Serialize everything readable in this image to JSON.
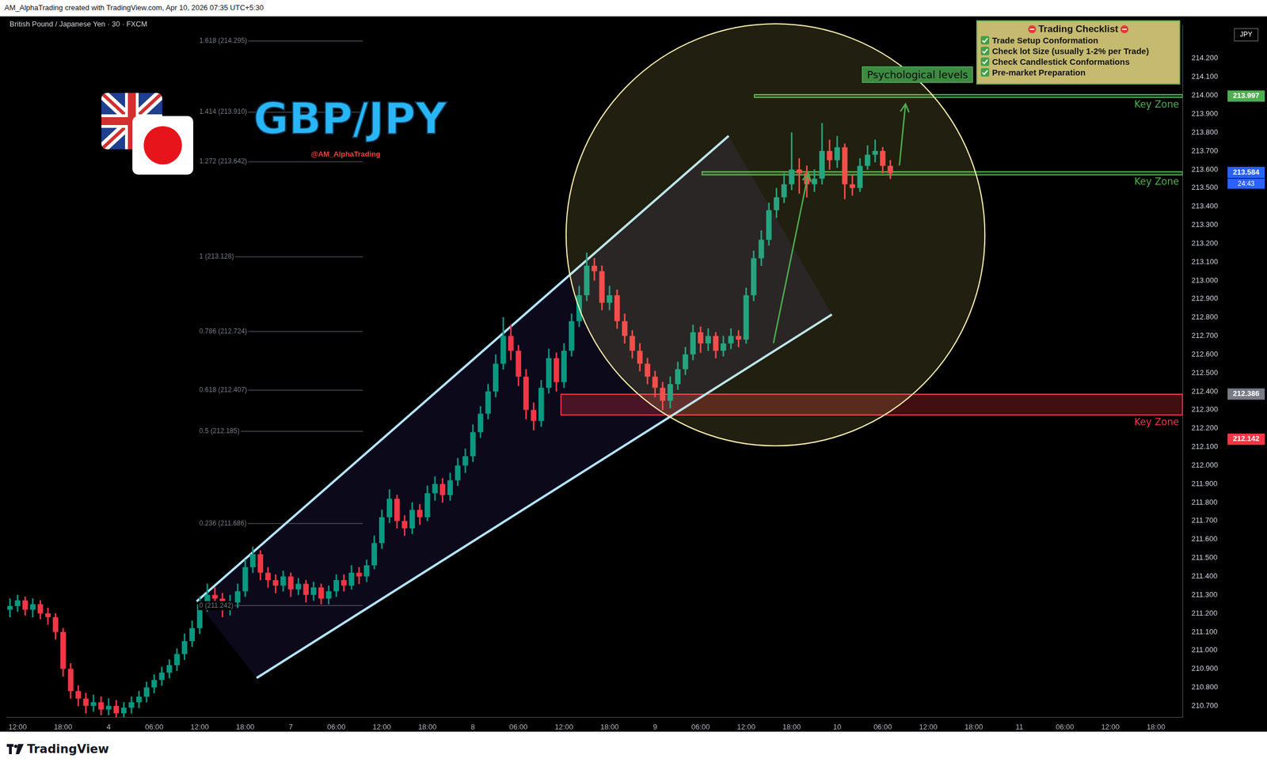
{
  "chart_data": {
    "type": "candlestick",
    "title": "British Pound / Japanese Yen · 30 · FXCM",
    "categories": [
      null,
      "12:00",
      null,
      null,
      null,
      null,
      null,
      "18:00",
      null,
      null,
      null,
      null,
      null,
      "4",
      null,
      null,
      null,
      null,
      null,
      "06:00",
      null,
      null,
      null,
      null,
      null,
      "12:00",
      null,
      null,
      null,
      null,
      null,
      "18:00",
      null,
      null,
      null,
      null,
      null,
      "7",
      null,
      null,
      null,
      null,
      null,
      "06:00",
      null,
      null,
      null,
      null,
      null,
      "12:00",
      null,
      null,
      null,
      null,
      null,
      "18:00",
      null,
      null,
      null,
      null,
      null,
      "8",
      null,
      null,
      null,
      null,
      null,
      "06:00",
      null,
      null,
      null,
      null,
      null,
      "12:00",
      null,
      null,
      null,
      null,
      null,
      "18:00",
      null,
      null,
      null,
      null,
      null,
      "9",
      null,
      null,
      null,
      null,
      null,
      "06:00",
      null,
      null,
      null,
      null,
      null,
      "12:00",
      null,
      null,
      null,
      null,
      null,
      "18:00",
      null,
      null,
      null,
      null,
      null,
      "10",
      null,
      null,
      null,
      null,
      null,
      "06:00",
      null,
      null,
      null,
      null,
      null,
      "12:00",
      null,
      null,
      null,
      null,
      null,
      "18:00",
      null,
      null,
      null,
      null,
      null,
      "11",
      null,
      null,
      null,
      null,
      null,
      "06:00",
      null,
      null,
      null,
      null,
      null,
      "12:00",
      null,
      null,
      null,
      null,
      null,
      "18:00",
      null,
      null,
      null
    ],
    "open": [
      211.22,
      211.24,
      211.27,
      211.22,
      211.25,
      211.2,
      211.18,
      211.1,
      210.9,
      210.78,
      210.74,
      210.7,
      210.72,
      210.68,
      210.7,
      210.66,
      210.69,
      210.72,
      210.75,
      210.8,
      210.84,
      210.88,
      210.92,
      210.98,
      211.05,
      211.12,
      211.25,
      211.3,
      211.28,
      211.22,
      211.26,
      211.32,
      211.45,
      211.52,
      211.42,
      211.38,
      211.35,
      211.4,
      211.33,
      211.36,
      211.3,
      211.34,
      211.28,
      211.32,
      211.38,
      211.35,
      211.42,
      211.4,
      211.46,
      211.58,
      211.72,
      211.82,
      211.7,
      211.66,
      211.76,
      211.72,
      211.85,
      211.9,
      211.84,
      211.92,
      212.0,
      212.05,
      212.18,
      212.28,
      212.4,
      212.55,
      212.7,
      212.62,
      212.48,
      212.3,
      212.24,
      212.42,
      212.58,
      212.45,
      212.62,
      212.78,
      212.92,
      213.08,
      213.05,
      212.88,
      212.92,
      212.78,
      212.7,
      212.62,
      212.55,
      212.48,
      212.42,
      212.35,
      212.44,
      212.52,
      212.6,
      212.72,
      212.66,
      212.7,
      212.62,
      212.66,
      212.7,
      212.68,
      212.92,
      213.12,
      213.22,
      213.38,
      213.45,
      213.52,
      213.6,
      213.58,
      213.52,
      213.55,
      213.7,
      213.65,
      213.72,
      213.52,
      213.5,
      213.62,
      213.68,
      213.7,
      213.62,
      null,
      null,
      null,
      null,
      null,
      null,
      null,
      null,
      null,
      null,
      null,
      null,
      null,
      null,
      null,
      null,
      null,
      null,
      null,
      null,
      null,
      null,
      null,
      null,
      null,
      null,
      null,
      null,
      null,
      null,
      null,
      null,
      null,
      null,
      null,
      null,
      null,
      null
    ],
    "high": [
      211.28,
      211.3,
      211.29,
      211.28,
      211.27,
      211.23,
      211.2,
      211.12,
      210.93,
      210.81,
      210.77,
      210.76,
      210.75,
      210.74,
      210.73,
      210.72,
      210.75,
      210.78,
      210.83,
      210.87,
      210.91,
      210.95,
      211.01,
      211.09,
      211.16,
      211.29,
      211.36,
      211.34,
      211.31,
      211.3,
      211.36,
      211.49,
      211.56,
      211.54,
      211.45,
      211.41,
      211.43,
      211.42,
      211.39,
      211.38,
      211.37,
      211.36,
      211.35,
      211.41,
      211.41,
      211.46,
      211.45,
      211.49,
      211.62,
      211.76,
      211.87,
      211.84,
      211.73,
      211.8,
      211.79,
      211.89,
      211.94,
      211.93,
      211.96,
      212.04,
      212.09,
      212.22,
      212.32,
      212.44,
      212.6,
      212.8,
      212.76,
      212.65,
      212.52,
      212.34,
      212.46,
      212.63,
      212.61,
      212.66,
      212.82,
      212.97,
      213.15,
      213.12,
      213.08,
      212.97,
      212.95,
      212.82,
      212.73,
      212.66,
      212.58,
      212.51,
      212.45,
      212.48,
      212.56,
      212.64,
      212.76,
      212.75,
      212.74,
      212.72,
      212.7,
      212.74,
      212.73,
      212.96,
      213.16,
      213.27,
      213.42,
      213.5,
      213.58,
      213.8,
      213.66,
      213.62,
      213.6,
      213.85,
      213.76,
      213.78,
      213.74,
      213.57,
      213.66,
      213.73,
      213.76,
      213.72,
      213.65,
      null,
      null,
      null,
      null,
      null,
      null,
      null,
      null,
      null,
      null,
      null,
      null,
      null,
      null,
      null,
      null,
      null,
      null,
      null,
      null,
      null,
      null,
      null,
      null,
      null,
      null,
      null,
      null,
      null,
      null,
      null,
      null,
      null,
      null,
      null,
      null,
      null,
      null
    ],
    "low": [
      211.18,
      211.21,
      211.19,
      211.18,
      211.17,
      211.14,
      211.06,
      210.86,
      210.74,
      210.7,
      210.66,
      210.67,
      210.65,
      210.65,
      210.64,
      210.64,
      210.66,
      210.69,
      210.72,
      210.77,
      210.81,
      210.85,
      210.89,
      210.95,
      211.02,
      211.09,
      211.21,
      211.24,
      211.18,
      211.19,
      211.23,
      211.29,
      211.42,
      211.38,
      211.34,
      211.31,
      211.32,
      211.29,
      211.3,
      211.26,
      211.27,
      211.25,
      211.25,
      211.29,
      211.32,
      211.33,
      211.36,
      211.37,
      211.44,
      211.55,
      211.69,
      211.66,
      211.62,
      211.63,
      211.68,
      211.7,
      211.81,
      211.8,
      211.81,
      211.89,
      211.96,
      212.02,
      212.15,
      212.25,
      212.37,
      212.52,
      212.57,
      212.43,
      212.25,
      212.19,
      212.21,
      212.39,
      212.4,
      212.42,
      212.59,
      212.75,
      212.89,
      213.0,
      212.84,
      212.84,
      212.74,
      212.66,
      212.58,
      212.51,
      212.44,
      212.37,
      212.3,
      212.31,
      212.41,
      212.49,
      212.57,
      212.61,
      212.62,
      212.58,
      212.59,
      212.63,
      212.64,
      212.66,
      212.89,
      213.08,
      213.19,
      213.34,
      213.42,
      213.49,
      213.47,
      213.45,
      213.48,
      213.52,
      213.6,
      213.61,
      213.44,
      213.46,
      213.48,
      213.6,
      213.64,
      213.58,
      213.55,
      null,
      null,
      null,
      null,
      null,
      null,
      null,
      null,
      null,
      null,
      null,
      null,
      null,
      null,
      null,
      null,
      null,
      null,
      null,
      null,
      null,
      null,
      null,
      null,
      null,
      null,
      null,
      null,
      null,
      null,
      null,
      null,
      null,
      null,
      null,
      null,
      null,
      null
    ],
    "close": [
      211.24,
      211.27,
      211.22,
      211.25,
      211.2,
      211.18,
      211.1,
      210.9,
      210.78,
      210.74,
      210.7,
      210.72,
      210.68,
      210.7,
      210.66,
      210.69,
      210.72,
      210.75,
      210.8,
      210.84,
      210.88,
      210.92,
      210.98,
      211.05,
      211.12,
      211.25,
      211.3,
      211.28,
      211.22,
      211.26,
      211.32,
      211.45,
      211.52,
      211.42,
      211.38,
      211.35,
      211.4,
      211.33,
      211.36,
      211.3,
      211.34,
      211.28,
      211.32,
      211.38,
      211.35,
      211.42,
      211.4,
      211.46,
      211.58,
      211.72,
      211.82,
      211.7,
      211.66,
      211.76,
      211.72,
      211.85,
      211.9,
      211.84,
      211.92,
      212.0,
      212.05,
      212.18,
      212.28,
      212.4,
      212.55,
      212.7,
      212.62,
      212.48,
      212.3,
      212.24,
      212.42,
      212.58,
      212.45,
      212.62,
      212.78,
      212.92,
      213.08,
      213.05,
      212.88,
      212.92,
      212.78,
      212.7,
      212.62,
      212.55,
      212.48,
      212.42,
      212.35,
      212.44,
      212.52,
      212.6,
      212.72,
      212.66,
      212.7,
      212.62,
      212.66,
      212.7,
      212.68,
      212.92,
      213.12,
      213.22,
      213.38,
      213.45,
      213.52,
      213.6,
      213.58,
      213.52,
      213.55,
      213.7,
      213.65,
      213.72,
      213.52,
      213.5,
      213.62,
      213.68,
      213.7,
      213.62,
      213.58,
      null,
      null,
      null,
      null,
      null,
      null,
      null,
      null,
      null,
      null,
      null,
      null,
      null,
      null,
      null,
      null,
      null,
      null,
      null,
      null,
      null,
      null,
      null,
      null,
      null,
      null,
      null,
      null,
      null,
      null,
      null,
      null,
      null,
      null,
      null,
      null,
      null,
      null
    ],
    "color": {
      "up": "#089981",
      "down": "#f23645"
    },
    "ylim": [
      210.64,
      214.38
    ],
    "yticks": [
      {
        "value": 210.7,
        "label": "210.700"
      },
      {
        "value": 210.8,
        "label": "210.800"
      },
      {
        "value": 210.9,
        "label": "210.900"
      },
      {
        "value": 211.0,
        "label": "211.000"
      },
      {
        "value": 211.1,
        "label": "211.100"
      },
      {
        "value": 211.2,
        "label": "211.200"
      },
      {
        "value": 211.3,
        "label": "211.300"
      },
      {
        "value": 211.4,
        "label": "211.400"
      },
      {
        "value": 211.5,
        "label": "211.500"
      },
      {
        "value": 211.6,
        "label": "211.600"
      },
      {
        "value": 211.7,
        "label": "211.700"
      },
      {
        "value": 211.8,
        "label": "211.800"
      },
      {
        "value": 211.9,
        "label": "211.900"
      },
      {
        "value": 212.0,
        "label": "212.000"
      },
      {
        "value": 212.1,
        "label": "212.100"
      },
      {
        "value": 212.2,
        "label": "212.200"
      },
      {
        "value": 212.3,
        "label": "212.300"
      },
      {
        "value": 212.4,
        "label": "212.400"
      },
      {
        "value": 212.5,
        "label": "212.500"
      },
      {
        "value": 212.6,
        "label": "212.600"
      },
      {
        "value": 212.7,
        "label": "212.700"
      },
      {
        "value": 212.8,
        "label": "212.800"
      },
      {
        "value": 212.9,
        "label": "212.900"
      },
      {
        "value": 213.0,
        "label": "213.000"
      },
      {
        "value": 213.1,
        "label": "213.100"
      },
      {
        "value": 213.2,
        "label": "213.200"
      },
      {
        "value": 213.3,
        "label": "213.300"
      },
      {
        "value": 213.4,
        "label": "213.400"
      },
      {
        "value": 213.5,
        "label": "213.500"
      },
      {
        "value": 213.6,
        "label": "213.600"
      },
      {
        "value": 213.7,
        "label": "213.700"
      },
      {
        "value": 213.8,
        "label": "213.800"
      },
      {
        "value": 213.9,
        "label": "213.900"
      },
      {
        "value": 214.0,
        "label": "214.000"
      },
      {
        "value": 214.1,
        "label": "214.100"
      },
      {
        "value": 214.2,
        "label": "214.200"
      }
    ],
    "y_label": "JPY",
    "grid": false,
    "price_tags": [
      {
        "value": 213.997,
        "color": "#4caf50"
      },
      {
        "value": 213.584,
        "color": "#2962ff"
      },
      {
        "value": 212.386,
        "color": "#787b86"
      },
      {
        "value": 212.142,
        "color": "#f23645"
      }
    ],
    "countdown": "24:43",
    "zones": [
      {
        "label": "Key Zone",
        "from": 213.99,
        "to": 214.005,
        "start": 98.1,
        "color": "#4caf50"
      },
      {
        "label": "Key Zone",
        "from": 213.571,
        "to": 213.588,
        "start": 91.2,
        "color": "#4caf50"
      },
      {
        "label": "Key Zone",
        "from": 212.273,
        "to": 212.385,
        "start": 72.6,
        "color": "#f23645"
      }
    ],
    "fib_range": [
      24.8,
      46.5
    ],
    "fib_levels": [
      {
        "label": "1.618 (214.295)",
        "value": 214.295
      },
      {
        "label": "1.414 (213.910)",
        "value": 213.91
      },
      {
        "label": "1.272 (213.642)",
        "value": 213.642
      },
      {
        "label": "1 (213.128)",
        "value": 213.128
      },
      {
        "label": "0.786 (212.724)",
        "value": 212.724
      },
      {
        "label": "0.618 (212.407)",
        "value": 212.407
      },
      {
        "label": "0.5 (212.185)",
        "value": 212.185
      },
      {
        "label": "0.236 (211.686)",
        "value": 211.686
      },
      {
        "label": "0 (211.242)",
        "value": 211.242
      }
    ],
    "channel": [
      [
        [
          24.6,
          211.265
        ],
        [
          94.7,
          213.782
        ]
      ],
      [
        [
          32.5,
          210.851
        ],
        [
          108.3,
          212.816
        ]
      ]
    ],
    "arrows": [
      [
        [
          100.6,
          212.661
        ],
        [
          105.2,
          213.579
        ]
      ],
      [
        [
          117.2,
          213.622
        ],
        [
          118.0,
          213.954
        ]
      ]
    ],
    "annotation": "Psychological levels"
  },
  "header": "AM_AlphaTrading created with TradingView.com, Apr 10, 2026 07:35 UTC+5:30",
  "logo": {
    "text": "GBP/JPY",
    "handle": "@AM_AlphaTrading"
  },
  "checklist": {
    "title": "Trading Checklist",
    "items": [
      "Trade Setup Conformation",
      "Check lot Size (usually 1-2% per Trade)",
      "Check Candlestick Conformations",
      "Pre-market Preparation"
    ]
  },
  "footer": "TradingView"
}
